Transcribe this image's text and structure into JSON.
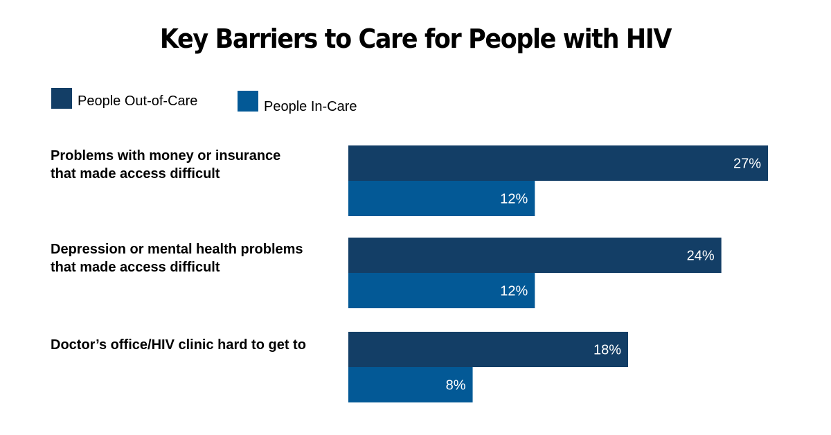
{
  "chart_data": {
    "type": "bar",
    "orientation": "horizontal",
    "title": "Key Barriers to Care for People with HIV",
    "categories": [
      [
        "Problems with money or insurance",
        "that made access difficult"
      ],
      [
        "Depression or mental health problems",
        "that made access difficult"
      ],
      [
        "Doctor’s office/HIV clinic hard to get to"
      ]
    ],
    "series": [
      {
        "name": "People Out-of-Care",
        "color": "#133e66",
        "values": [
          27,
          24,
          18
        ],
        "labels": [
          "27%",
          "24%",
          "18%"
        ]
      },
      {
        "name": "People In-Care",
        "color": "#035996",
        "values": [
          12,
          12,
          8
        ],
        "labels": [
          "12%",
          "12%",
          "8%"
        ]
      }
    ],
    "xlabel": "",
    "ylabel": "",
    "xlim": [
      0,
      27
    ],
    "grid": false,
    "legend": "top-left",
    "value_unit": "%"
  }
}
